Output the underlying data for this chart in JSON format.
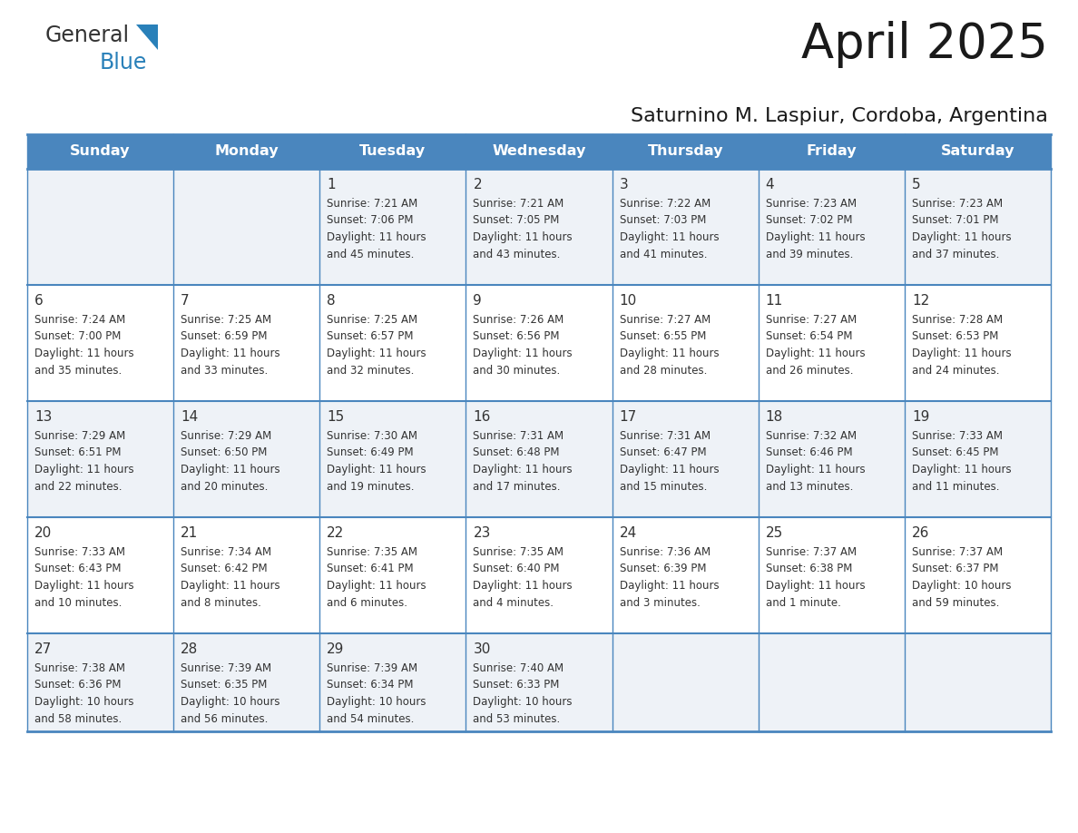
{
  "title": "April 2025",
  "subtitle": "Saturnino M. Laspiur, Cordoba, Argentina",
  "header_bg": "#4a86be",
  "header_text": "#ffffff",
  "row_bg_even": "#eef2f7",
  "row_bg_odd": "#ffffff",
  "border_color": "#4a86be",
  "cell_text_color": "#333333",
  "day_num_color": "#333333",
  "days_of_week": [
    "Sunday",
    "Monday",
    "Tuesday",
    "Wednesday",
    "Thursday",
    "Friday",
    "Saturday"
  ],
  "calendar_data": [
    [
      {
        "day": "",
        "info": ""
      },
      {
        "day": "",
        "info": ""
      },
      {
        "day": "1",
        "info": "Sunrise: 7:21 AM\nSunset: 7:06 PM\nDaylight: 11 hours\nand 45 minutes."
      },
      {
        "day": "2",
        "info": "Sunrise: 7:21 AM\nSunset: 7:05 PM\nDaylight: 11 hours\nand 43 minutes."
      },
      {
        "day": "3",
        "info": "Sunrise: 7:22 AM\nSunset: 7:03 PM\nDaylight: 11 hours\nand 41 minutes."
      },
      {
        "day": "4",
        "info": "Sunrise: 7:23 AM\nSunset: 7:02 PM\nDaylight: 11 hours\nand 39 minutes."
      },
      {
        "day": "5",
        "info": "Sunrise: 7:23 AM\nSunset: 7:01 PM\nDaylight: 11 hours\nand 37 minutes."
      }
    ],
    [
      {
        "day": "6",
        "info": "Sunrise: 7:24 AM\nSunset: 7:00 PM\nDaylight: 11 hours\nand 35 minutes."
      },
      {
        "day": "7",
        "info": "Sunrise: 7:25 AM\nSunset: 6:59 PM\nDaylight: 11 hours\nand 33 minutes."
      },
      {
        "day": "8",
        "info": "Sunrise: 7:25 AM\nSunset: 6:57 PM\nDaylight: 11 hours\nand 32 minutes."
      },
      {
        "day": "9",
        "info": "Sunrise: 7:26 AM\nSunset: 6:56 PM\nDaylight: 11 hours\nand 30 minutes."
      },
      {
        "day": "10",
        "info": "Sunrise: 7:27 AM\nSunset: 6:55 PM\nDaylight: 11 hours\nand 28 minutes."
      },
      {
        "day": "11",
        "info": "Sunrise: 7:27 AM\nSunset: 6:54 PM\nDaylight: 11 hours\nand 26 minutes."
      },
      {
        "day": "12",
        "info": "Sunrise: 7:28 AM\nSunset: 6:53 PM\nDaylight: 11 hours\nand 24 minutes."
      }
    ],
    [
      {
        "day": "13",
        "info": "Sunrise: 7:29 AM\nSunset: 6:51 PM\nDaylight: 11 hours\nand 22 minutes."
      },
      {
        "day": "14",
        "info": "Sunrise: 7:29 AM\nSunset: 6:50 PM\nDaylight: 11 hours\nand 20 minutes."
      },
      {
        "day": "15",
        "info": "Sunrise: 7:30 AM\nSunset: 6:49 PM\nDaylight: 11 hours\nand 19 minutes."
      },
      {
        "day": "16",
        "info": "Sunrise: 7:31 AM\nSunset: 6:48 PM\nDaylight: 11 hours\nand 17 minutes."
      },
      {
        "day": "17",
        "info": "Sunrise: 7:31 AM\nSunset: 6:47 PM\nDaylight: 11 hours\nand 15 minutes."
      },
      {
        "day": "18",
        "info": "Sunrise: 7:32 AM\nSunset: 6:46 PM\nDaylight: 11 hours\nand 13 minutes."
      },
      {
        "day": "19",
        "info": "Sunrise: 7:33 AM\nSunset: 6:45 PM\nDaylight: 11 hours\nand 11 minutes."
      }
    ],
    [
      {
        "day": "20",
        "info": "Sunrise: 7:33 AM\nSunset: 6:43 PM\nDaylight: 11 hours\nand 10 minutes."
      },
      {
        "day": "21",
        "info": "Sunrise: 7:34 AM\nSunset: 6:42 PM\nDaylight: 11 hours\nand 8 minutes."
      },
      {
        "day": "22",
        "info": "Sunrise: 7:35 AM\nSunset: 6:41 PM\nDaylight: 11 hours\nand 6 minutes."
      },
      {
        "day": "23",
        "info": "Sunrise: 7:35 AM\nSunset: 6:40 PM\nDaylight: 11 hours\nand 4 minutes."
      },
      {
        "day": "24",
        "info": "Sunrise: 7:36 AM\nSunset: 6:39 PM\nDaylight: 11 hours\nand 3 minutes."
      },
      {
        "day": "25",
        "info": "Sunrise: 7:37 AM\nSunset: 6:38 PM\nDaylight: 11 hours\nand 1 minute."
      },
      {
        "day": "26",
        "info": "Sunrise: 7:37 AM\nSunset: 6:37 PM\nDaylight: 10 hours\nand 59 minutes."
      }
    ],
    [
      {
        "day": "27",
        "info": "Sunrise: 7:38 AM\nSunset: 6:36 PM\nDaylight: 10 hours\nand 58 minutes."
      },
      {
        "day": "28",
        "info": "Sunrise: 7:39 AM\nSunset: 6:35 PM\nDaylight: 10 hours\nand 56 minutes."
      },
      {
        "day": "29",
        "info": "Sunrise: 7:39 AM\nSunset: 6:34 PM\nDaylight: 10 hours\nand 54 minutes."
      },
      {
        "day": "30",
        "info": "Sunrise: 7:40 AM\nSunset: 6:33 PM\nDaylight: 10 hours\nand 53 minutes."
      },
      {
        "day": "",
        "info": ""
      },
      {
        "day": "",
        "info": ""
      },
      {
        "day": "",
        "info": ""
      }
    ]
  ],
  "logo_text_general": "General",
  "logo_text_blue": "Blue",
  "logo_color_general": "#333333",
  "logo_color_blue": "#2980b9",
  "logo_triangle_color": "#2980b9",
  "fig_width": 11.88,
  "fig_height": 9.18
}
